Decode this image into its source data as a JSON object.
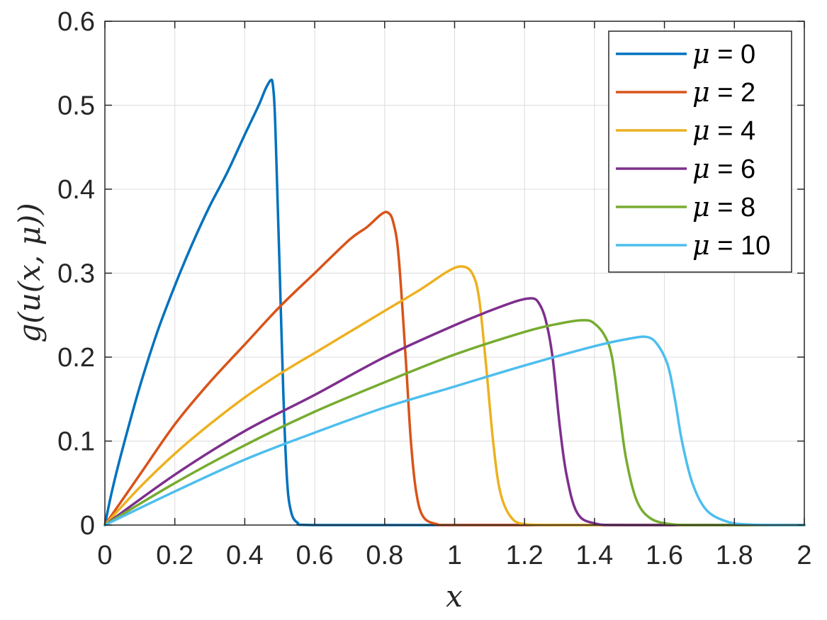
{
  "chart_data": {
    "type": "line",
    "title": "",
    "xlabel": "x",
    "ylabel": "g(u(x, μ))",
    "xlim": [
      0,
      2
    ],
    "ylim": [
      0,
      0.6
    ],
    "xticks": [
      0,
      0.2,
      0.4,
      0.6,
      0.8,
      1,
      1.2,
      1.4,
      1.6,
      1.8,
      2
    ],
    "xtick_labels": [
      "0",
      "0.2",
      "0.4",
      "0.6",
      "0.8",
      "1",
      "1.2",
      "1.4",
      "1.6",
      "1.8",
      "2"
    ],
    "yticks": [
      0,
      0.1,
      0.2,
      0.3,
      0.4,
      0.5,
      0.6
    ],
    "ytick_labels": [
      "0",
      "0.1",
      "0.2",
      "0.3",
      "0.4",
      "0.5",
      "0.6"
    ],
    "grid": true,
    "legend_position": "top-right",
    "series": [
      {
        "name": "μ = 0",
        "color": "#0072BD",
        "x": [
          0,
          0.02,
          0.05,
          0.1,
          0.15,
          0.2,
          0.25,
          0.3,
          0.35,
          0.4,
          0.44,
          0.46,
          0.475,
          0.48,
          0.485,
          0.49,
          0.5,
          0.51,
          0.52,
          0.53,
          0.55,
          0.6,
          1.0,
          1.5,
          2.0
        ],
        "y": [
          0,
          0.04,
          0.09,
          0.165,
          0.23,
          0.285,
          0.335,
          0.38,
          0.42,
          0.465,
          0.5,
          0.52,
          0.53,
          0.525,
          0.5,
          0.44,
          0.3,
          0.16,
          0.06,
          0.02,
          0.003,
          0,
          0,
          0,
          0
        ]
      },
      {
        "name": "μ = 2",
        "color": "#D95319",
        "x": [
          0,
          0.1,
          0.2,
          0.3,
          0.4,
          0.5,
          0.6,
          0.7,
          0.75,
          0.79,
          0.81,
          0.825,
          0.84,
          0.86,
          0.875,
          0.89,
          0.91,
          0.95,
          1.0,
          1.5,
          2.0
        ],
        "y": [
          0,
          0.06,
          0.12,
          0.17,
          0.215,
          0.26,
          0.3,
          0.34,
          0.355,
          0.37,
          0.372,
          0.36,
          0.32,
          0.2,
          0.1,
          0.04,
          0.01,
          0.001,
          0,
          0,
          0
        ]
      },
      {
        "name": "μ = 4",
        "color": "#EDB120",
        "x": [
          0,
          0.1,
          0.2,
          0.3,
          0.4,
          0.5,
          0.6,
          0.7,
          0.8,
          0.9,
          0.98,
          1.02,
          1.05,
          1.07,
          1.09,
          1.11,
          1.13,
          1.16,
          1.2,
          1.3,
          1.5,
          2.0
        ],
        "y": [
          0,
          0.045,
          0.085,
          0.12,
          0.152,
          0.18,
          0.205,
          0.23,
          0.255,
          0.28,
          0.302,
          0.308,
          0.3,
          0.27,
          0.19,
          0.1,
          0.04,
          0.01,
          0.001,
          0,
          0,
          0
        ]
      },
      {
        "name": "μ = 6",
        "color": "#7E2F8E",
        "x": [
          0,
          0.2,
          0.4,
          0.6,
          0.8,
          1.0,
          1.1,
          1.18,
          1.22,
          1.24,
          1.26,
          1.28,
          1.3,
          1.32,
          1.35,
          1.4,
          1.5,
          2.0
        ],
        "y": [
          0,
          0.06,
          0.112,
          0.155,
          0.2,
          0.238,
          0.255,
          0.267,
          0.27,
          0.265,
          0.245,
          0.2,
          0.12,
          0.06,
          0.015,
          0.002,
          0,
          0
        ]
      },
      {
        "name": "μ = 8",
        "color": "#77AC30",
        "x": [
          0,
          0.2,
          0.4,
          0.6,
          0.8,
          1.0,
          1.2,
          1.3,
          1.37,
          1.4,
          1.43,
          1.45,
          1.47,
          1.49,
          1.52,
          1.56,
          1.62,
          1.7,
          2.0
        ],
        "y": [
          0,
          0.05,
          0.095,
          0.135,
          0.17,
          0.203,
          0.23,
          0.24,
          0.244,
          0.24,
          0.225,
          0.2,
          0.14,
          0.08,
          0.03,
          0.008,
          0.001,
          0,
          0
        ]
      },
      {
        "name": "μ = 10",
        "color": "#4DBEEE",
        "x": [
          0,
          0.2,
          0.4,
          0.6,
          0.8,
          1.0,
          1.2,
          1.4,
          1.5,
          1.55,
          1.58,
          1.61,
          1.63,
          1.65,
          1.68,
          1.72,
          1.78,
          1.85,
          2.0
        ],
        "y": [
          0,
          0.04,
          0.078,
          0.11,
          0.14,
          0.165,
          0.19,
          0.213,
          0.222,
          0.224,
          0.215,
          0.19,
          0.15,
          0.1,
          0.05,
          0.018,
          0.004,
          0.0005,
          0
        ]
      }
    ]
  }
}
